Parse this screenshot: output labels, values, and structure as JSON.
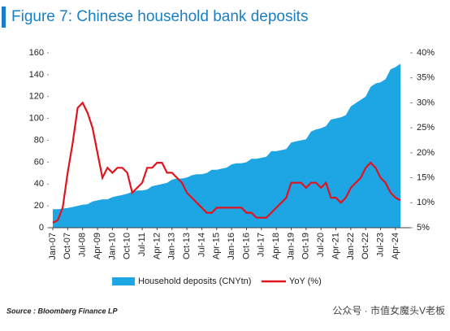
{
  "chart_data": {
    "type": "area-line",
    "title": "Figure 7: Chinese household bank deposits",
    "source": "Source : Bloomberg Finance LP",
    "watermark": "公众号 · 市值女魔头V老板",
    "categories": [
      "Jan-07",
      null,
      null,
      "Oct-07",
      null,
      null,
      "Jul-08",
      null,
      null,
      "Apr-09",
      null,
      null,
      "Jan-10",
      null,
      null,
      "Oct-10",
      null,
      null,
      "Jul-11",
      null,
      null,
      "Apr-12",
      null,
      null,
      "Jan-13",
      null,
      null,
      "Oct-13",
      null,
      null,
      "Jul-14",
      null,
      null,
      "Apr-15",
      null,
      null,
      "Jan-16",
      null,
      null,
      "Oct-16",
      null,
      null,
      "Jul-17",
      null,
      null,
      "Apr-18",
      null,
      null,
      "Jan-19",
      null,
      null,
      "Oct-19",
      null,
      null,
      "Jul-20",
      null,
      null,
      "Apr-21",
      null,
      null,
      "Jan-22",
      null,
      null,
      "Oct-22",
      null,
      null,
      "Jul-23",
      null,
      null,
      "Apr-24",
      null
    ],
    "series": [
      {
        "name": "Household deposits (CNYtn)",
        "color": "#1ea5e3",
        "axis": "y",
        "values": [
          17,
          17,
          17.5,
          18,
          19,
          20,
          21,
          21.5,
          24,
          25,
          26,
          26,
          28,
          29,
          30,
          31,
          33,
          34,
          34,
          35,
          38,
          39,
          40,
          41,
          44,
          45,
          45,
          46,
          48,
          49,
          49,
          50,
          53,
          53,
          54,
          55,
          58,
          59,
          59,
          60,
          63,
          63,
          64,
          65,
          70,
          70,
          71,
          72,
          78,
          79,
          80,
          81,
          88,
          90,
          91,
          93,
          99,
          100,
          101,
          103,
          111,
          114,
          117,
          120,
          129,
          132,
          133,
          136,
          145,
          147,
          150
        ]
      },
      {
        "name": "YoY (%)",
        "color": "#e0141e",
        "axis": "y2",
        "values": [
          6,
          6.5,
          9,
          16,
          22,
          29,
          30,
          28,
          25,
          20,
          15,
          17,
          16,
          17,
          17,
          16,
          12,
          13,
          14,
          17,
          17,
          18,
          18,
          16,
          16,
          15,
          14,
          12,
          11,
          10,
          9,
          8,
          8,
          9,
          9,
          9,
          9,
          9,
          9,
          8,
          8,
          7,
          7,
          7,
          8,
          9,
          10,
          11,
          14,
          14,
          14,
          13,
          14,
          14,
          13,
          14,
          11,
          11,
          10,
          11,
          13,
          14,
          15,
          17,
          18,
          17,
          15,
          14,
          12,
          11,
          10.5
        ]
      }
    ],
    "ylim": [
      0,
      160
    ],
    "yticks": [
      0,
      20,
      40,
      60,
      80,
      100,
      120,
      140,
      160
    ],
    "y2lim": [
      5,
      40
    ],
    "y2ticks": [
      {
        "value": 5,
        "label": "5%"
      },
      {
        "value": 10,
        "label": "10%"
      },
      {
        "value": 15,
        "label": "15%"
      },
      {
        "value": 20,
        "label": "20%"
      },
      {
        "value": 25,
        "label": "25%"
      },
      {
        "value": 30,
        "label": "30%"
      },
      {
        "value": 35,
        "label": "35%"
      },
      {
        "value": 40,
        "label": "40%"
      }
    ]
  }
}
